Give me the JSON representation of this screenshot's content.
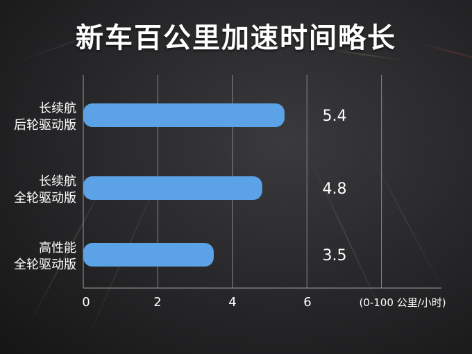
{
  "title": "新车百公里加速时间略长",
  "colors": {
    "bar": "#5ba3e6",
    "grid": "#8a8a8a",
    "text": "#ffffff"
  },
  "chart_data": {
    "type": "bar",
    "orientation": "horizontal",
    "categories": [
      [
        "长续航",
        "后轮驱动版"
      ],
      [
        "长续航",
        "全轮驱动版"
      ],
      [
        "高性能",
        "全轮驱动版"
      ]
    ],
    "values": [
      5.4,
      4.8,
      3.5
    ],
    "value_labels": [
      "5.4",
      "4.8",
      "3.5"
    ],
    "xticks": [
      "0",
      "2",
      "4",
      "6"
    ],
    "xlim": [
      0,
      8
    ],
    "unit": "(0-100 公里/小时)",
    "grid": true
  }
}
